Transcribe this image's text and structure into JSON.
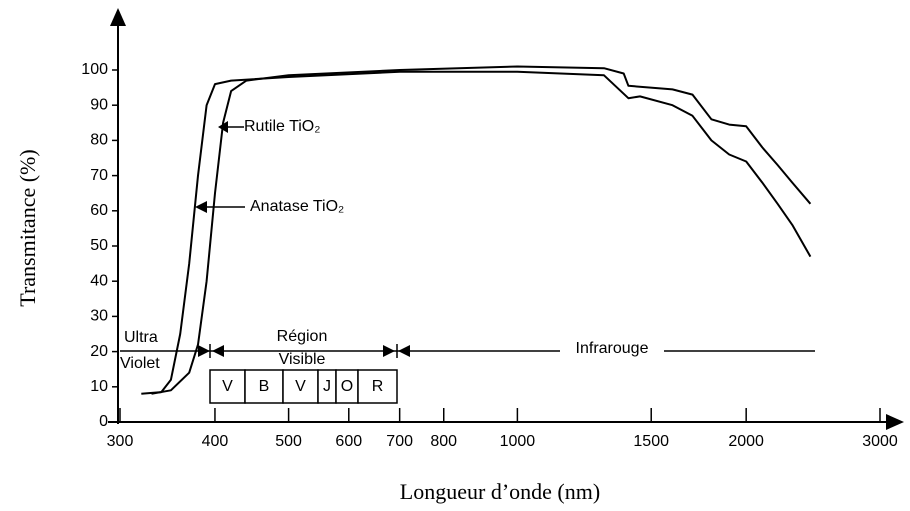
{
  "chart_data": {
    "type": "line",
    "xlabel": "Longueur d’onde (nm)",
    "ylabel": "Transmitance (%)",
    "xscale": "log",
    "xlim": [
      300,
      3000
    ],
    "ylim": [
      0,
      100
    ],
    "xticks": [
      300,
      400,
      500,
      600,
      700,
      800,
      1000,
      1500,
      2000,
      3000
    ],
    "yticks": [
      0,
      10,
      20,
      30,
      40,
      50,
      60,
      70,
      80,
      90,
      100
    ],
    "series": [
      {
        "name": "Anatase TiO₂",
        "color": "#000000",
        "x": [
          320,
          340,
          350,
          360,
          370,
          380,
          390,
          400,
          420,
          500,
          700,
          1000,
          1300,
          1400,
          1450,
          1600,
          1700,
          1800,
          1900,
          2000,
          2100,
          2200,
          2300,
          2430
        ],
        "values": [
          8,
          8.5,
          12,
          25,
          45,
          70,
          90,
          96,
          97,
          98,
          99.5,
          99.5,
          98.5,
          92,
          92.5,
          90,
          87,
          80,
          76,
          74,
          68,
          62,
          56,
          47
        ]
      },
      {
        "name": "Rutile TiO₂",
        "color": "#000000",
        "x": [
          330,
          350,
          370,
          380,
          390,
          400,
          410,
          420,
          440,
          500,
          700,
          1000,
          1300,
          1380,
          1400,
          1600,
          1700,
          1800,
          1900,
          2000,
          2100,
          2200,
          2300,
          2430
        ],
        "values": [
          8,
          9,
          14,
          22,
          40,
          65,
          85,
          94,
          97,
          98.5,
          100,
          101,
          100.5,
          99,
          95.5,
          94.5,
          93,
          86,
          84.5,
          84,
          78,
          73,
          68,
          62
        ]
      }
    ],
    "regions": {
      "uv": [
        "Ultra",
        "Violet"
      ],
      "visible": [
        "Région",
        "Visible"
      ],
      "ir": "Infrarouge",
      "colors": [
        "V",
        "B",
        "V",
        "J",
        "O",
        "R"
      ]
    }
  }
}
